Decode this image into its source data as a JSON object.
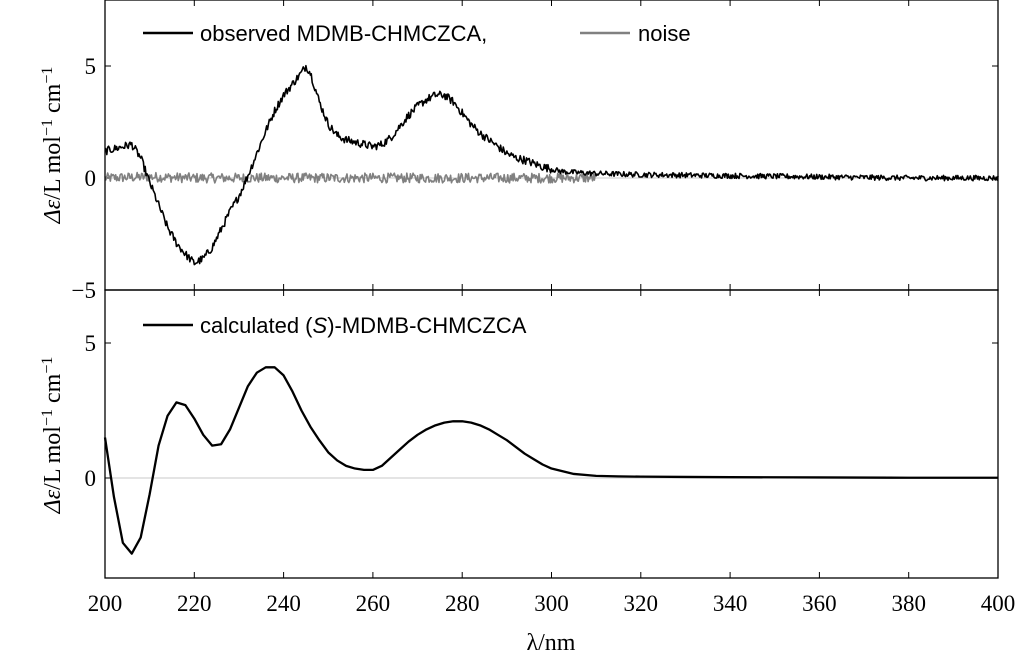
{
  "chart_data": [
    {
      "type": "line",
      "panel": "top",
      "xlabel": "λ/nm",
      "ylabel": "Δε/L mol⁻¹ cm⁻¹",
      "xlim": [
        200,
        400
      ],
      "ylim": [
        -5,
        8
      ],
      "yticks": [
        -5,
        0,
        5
      ],
      "ytick_labels": [
        "−5",
        "0",
        "5"
      ],
      "zero_line": true,
      "legend": [
        {
          "name": "observed MDMB-CHMCZCA,",
          "color": "#000000"
        },
        {
          "name": "noise",
          "color": "#808080"
        }
      ],
      "legend_placement": "top-left",
      "series": [
        {
          "name": "observed MDMB-CHMCZCA",
          "color": "#000000",
          "noisy": true,
          "x": [
            200,
            204,
            206,
            208,
            210,
            212,
            214,
            216,
            218,
            220,
            222,
            224,
            226,
            228,
            230,
            232,
            234,
            236,
            238,
            240,
            242,
            244,
            245,
            246,
            248,
            250,
            252,
            254,
            256,
            258,
            260,
            262,
            264,
            266,
            268,
            270,
            272,
            274,
            276,
            278,
            280,
            282,
            284,
            286,
            288,
            290,
            292,
            294,
            296,
            298,
            300,
            302,
            305,
            310,
            320,
            340,
            360,
            380,
            400
          ],
          "values": [
            1.2,
            1.4,
            1.5,
            0.9,
            -0.2,
            -1.2,
            -2.2,
            -2.9,
            -3.4,
            -3.8,
            -3.6,
            -3.1,
            -2.3,
            -1.5,
            -0.8,
            0.1,
            1.1,
            2.1,
            3.0,
            3.7,
            4.2,
            4.7,
            5.0,
            4.7,
            3.4,
            2.4,
            1.9,
            1.7,
            1.6,
            1.5,
            1.4,
            1.5,
            1.8,
            2.3,
            2.8,
            3.2,
            3.5,
            3.7,
            3.7,
            3.4,
            2.9,
            2.4,
            2.0,
            1.7,
            1.4,
            1.1,
            0.9,
            0.8,
            0.65,
            0.5,
            0.4,
            0.3,
            0.25,
            0.2,
            0.15,
            0.1,
            0.05,
            0.0,
            0.0
          ]
        },
        {
          "name": "noise",
          "color": "#808080",
          "noisy": true,
          "x": [
            200,
            210,
            220,
            230,
            240,
            250,
            260,
            270,
            280,
            290,
            300,
            310
          ],
          "values": [
            0.0,
            0.05,
            0.0,
            0.0,
            0.0,
            0.0,
            0.0,
            0.0,
            0.0,
            0.0,
            0.0,
            0.0
          ]
        }
      ]
    },
    {
      "type": "line",
      "panel": "bottom",
      "xlabel": "λ/nm",
      "ylabel": "Δε/L mol⁻¹ cm⁻¹",
      "xlim": [
        200,
        400
      ],
      "ylim": [
        -3.7,
        6.8
      ],
      "xticks": [
        200,
        220,
        240,
        260,
        280,
        300,
        320,
        340,
        360,
        380,
        400
      ],
      "xtick_labels": [
        "200",
        "220",
        "240",
        "260",
        "280",
        "300",
        "320",
        "340",
        "360",
        "380",
        "400"
      ],
      "yticks": [
        0,
        5
      ],
      "ytick_labels": [
        "0",
        "5"
      ],
      "zero_line": true,
      "legend": [
        {
          "name": "calculated (S)-MDMB-CHMCZCA",
          "color": "#000000"
        }
      ],
      "legend_placement": "top-left",
      "series": [
        {
          "name": "calculated (S)-MDMB-CHMCZCA",
          "color": "#000000",
          "noisy": false,
          "x": [
            200,
            202,
            204,
            206,
            208,
            210,
            212,
            214,
            216,
            218,
            220,
            222,
            224,
            226,
            228,
            230,
            232,
            234,
            236,
            238,
            240,
            242,
            244,
            246,
            248,
            250,
            252,
            254,
            256,
            258,
            260,
            262,
            264,
            266,
            268,
            270,
            272,
            274,
            276,
            278,
            280,
            282,
            284,
            286,
            288,
            290,
            292,
            294,
            296,
            298,
            300,
            305,
            310,
            315,
            320,
            330,
            340,
            360,
            380,
            400
          ],
          "values": [
            1.5,
            -0.7,
            -2.4,
            -2.8,
            -2.2,
            -0.6,
            1.2,
            2.3,
            2.8,
            2.7,
            2.2,
            1.6,
            1.2,
            1.25,
            1.8,
            2.6,
            3.4,
            3.9,
            4.1,
            4.1,
            3.8,
            3.2,
            2.5,
            1.9,
            1.4,
            0.95,
            0.65,
            0.45,
            0.35,
            0.3,
            0.3,
            0.45,
            0.75,
            1.05,
            1.35,
            1.6,
            1.8,
            1.95,
            2.05,
            2.1,
            2.1,
            2.05,
            1.95,
            1.8,
            1.6,
            1.4,
            1.15,
            0.9,
            0.7,
            0.5,
            0.35,
            0.15,
            0.08,
            0.06,
            0.05,
            0.04,
            0.03,
            0.02,
            0.01,
            0.01
          ]
        }
      ]
    }
  ],
  "labels": {
    "top_legend_observed": "observed MDMB-CHMCZCA,",
    "top_legend_noise": "noise",
    "bottom_legend_calc_prefix": "calculated (",
    "bottom_legend_calc_italic": "S",
    "bottom_legend_calc_suffix": ")-MDMB-CHMCZCA",
    "ylabel_delta": "Δε",
    "ylabel_unit": "/L mol",
    "ylabel_sup1": "−1",
    "ylabel_cm": " cm",
    "ylabel_sup2": "−1",
    "xlabel": "λ/nm"
  }
}
